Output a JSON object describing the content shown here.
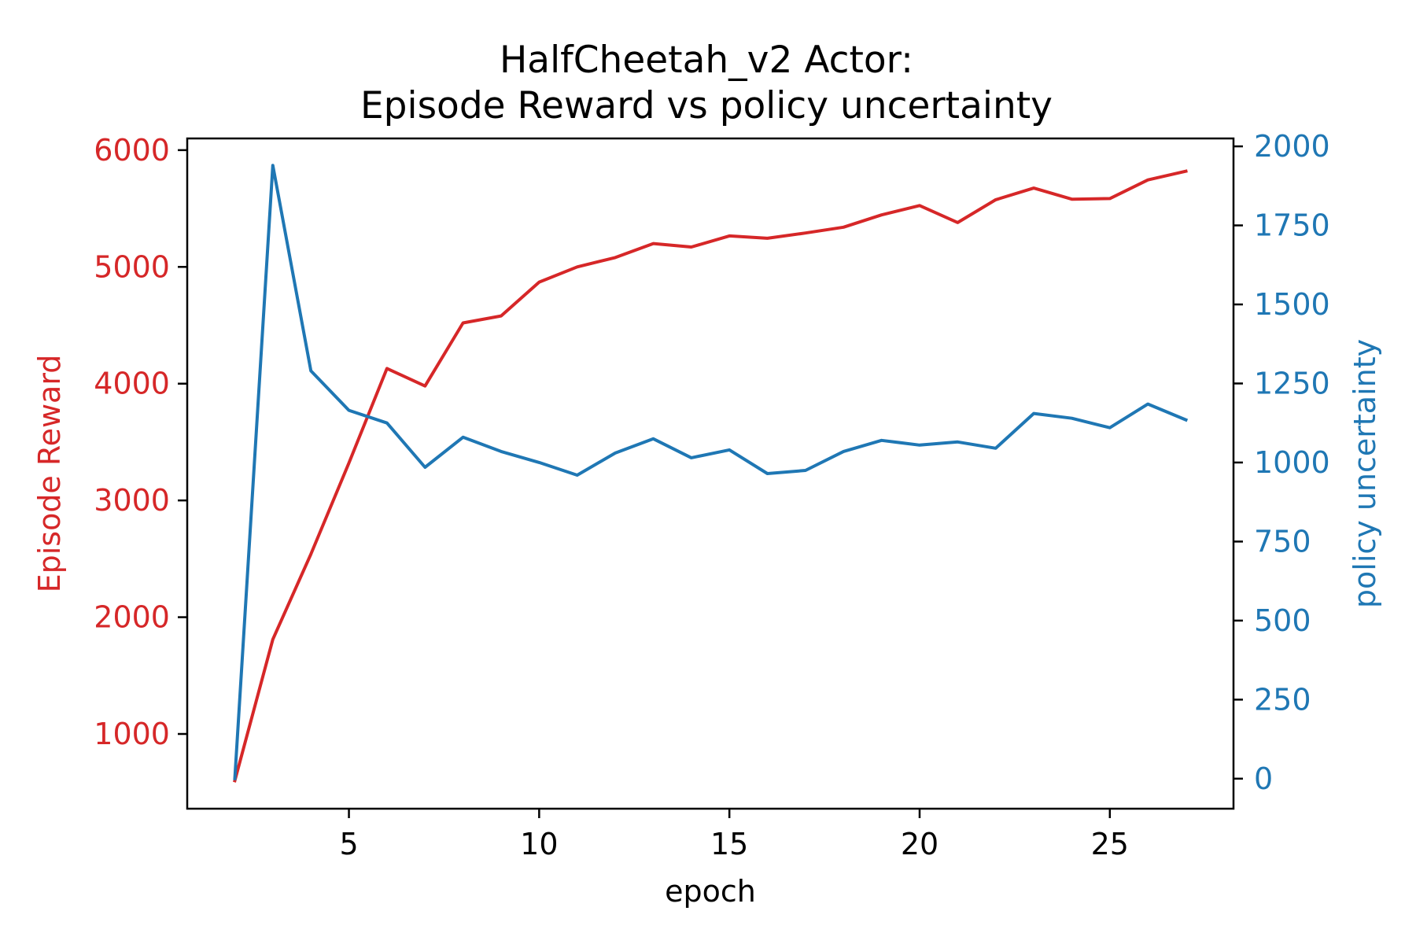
{
  "chart_data": {
    "type": "line",
    "title": "HalfCheetah_v2 Actor:",
    "subtitle": "Episode Reward vs policy uncertainty",
    "xlabel": "epoch",
    "ylabel": "Episode Reward",
    "y2label": "policy uncertainty",
    "xlim": [
      0.75,
      28.25
    ],
    "ylim": [
      360,
      6100
    ],
    "y2lim": [
      -95,
      2025
    ],
    "x_ticks": [
      5,
      10,
      15,
      20,
      25
    ],
    "y_ticks": [
      1000,
      2000,
      3000,
      4000,
      5000,
      6000
    ],
    "y2_ticks": [
      0,
      250,
      500,
      750,
      1000,
      1250,
      1500,
      1750,
      2000
    ],
    "grid": false,
    "x": [
      2,
      3,
      4,
      5,
      6,
      7,
      8,
      9,
      10,
      11,
      12,
      13,
      14,
      15,
      16,
      17,
      18,
      19,
      20,
      21,
      22,
      23,
      24,
      25,
      26,
      27
    ],
    "series": [
      {
        "name": "Episode Reward",
        "axis": "left",
        "color": "#d62728",
        "values": [
          600,
          1810,
          2540,
          3320,
          4130,
          3980,
          4520,
          4580,
          4870,
          5000,
          5080,
          5200,
          5170,
          5265,
          5245,
          5290,
          5340,
          5445,
          5525,
          5380,
          5575,
          5675,
          5580,
          5585,
          5745,
          5820
        ]
      },
      {
        "name": "policy uncertainty",
        "axis": "right",
        "color": "#1f77b4",
        "values": [
          0,
          1940,
          1290,
          1165,
          1125,
          985,
          1080,
          1035,
          1000,
          960,
          1030,
          1075,
          1015,
          1040,
          965,
          975,
          1035,
          1070,
          1055,
          1065,
          1045,
          1155,
          1140,
          1110,
          1185,
          1135
        ]
      }
    ],
    "colors": {
      "left_axis": "#d62728",
      "right_axis": "#1f77b4",
      "frame": "#000000"
    }
  }
}
